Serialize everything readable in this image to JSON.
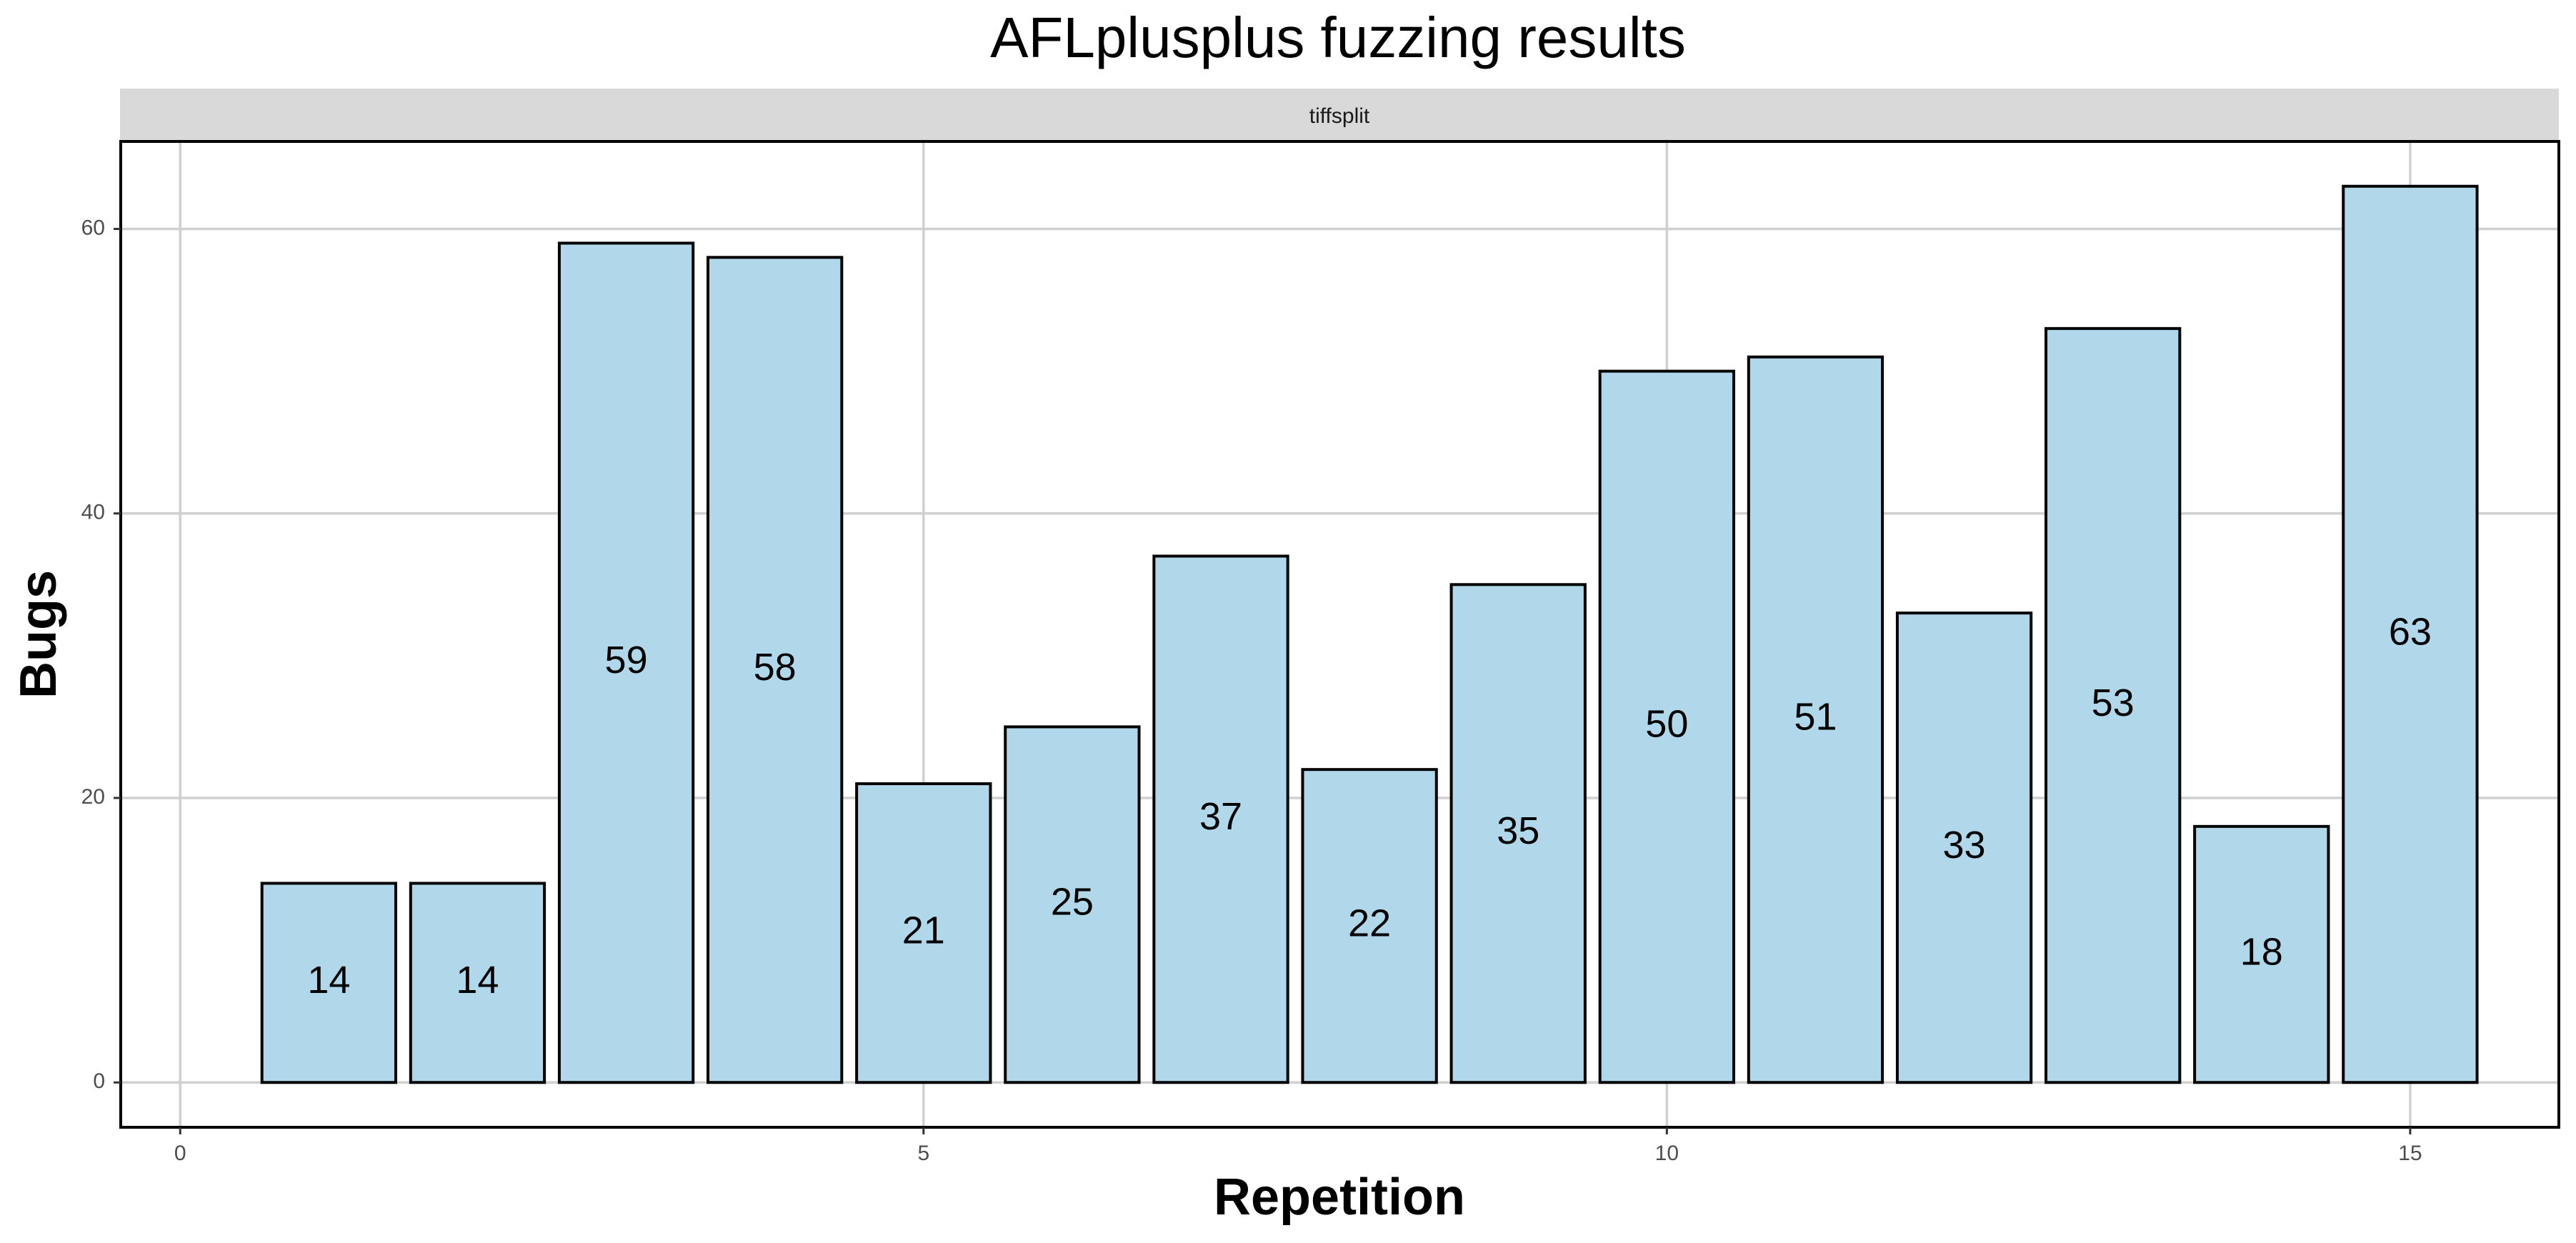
{
  "chart_data": {
    "type": "bar",
    "title": "AFLplusplus fuzzing results",
    "facet": "tiffsplit",
    "xlabel": "Repetition",
    "ylabel": "Bugs",
    "x": [
      1,
      2,
      3,
      4,
      5,
      6,
      7,
      8,
      9,
      10,
      11,
      12,
      13,
      14,
      15
    ],
    "values": [
      14,
      14,
      59,
      58,
      21,
      25,
      37,
      22,
      35,
      50,
      51,
      33,
      53,
      18,
      63
    ],
    "xlim": [
      -0.4,
      16.0
    ],
    "ylim": [
      -3.15,
      66.15
    ],
    "xticks": [
      0,
      5,
      10,
      15
    ],
    "yticks": [
      0,
      20,
      40,
      60
    ],
    "grid": true,
    "legend": "none",
    "colors": {
      "bar_fill": "#b0d8ea",
      "bar_stroke": "#000000",
      "strip_fill": "#d9d9d9",
      "grid": "#d0d0d0"
    }
  }
}
